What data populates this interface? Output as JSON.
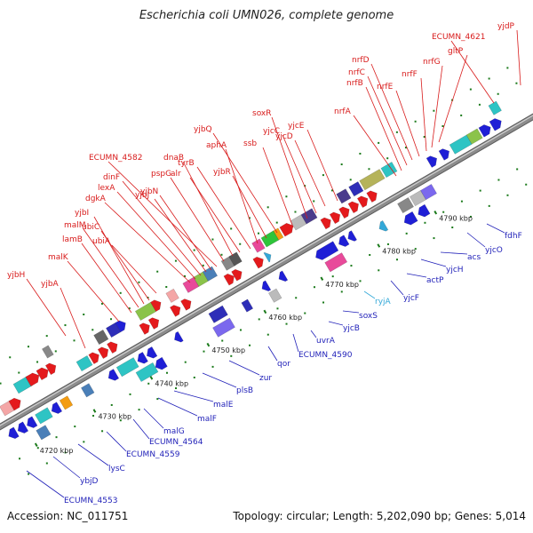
{
  "title": "Escherichia coli UMN026, complete genome",
  "accession": "Accession: NC_011751",
  "topology": "Topology: circular; Length: 5,202,090 bp; Genes: 5,014",
  "colors": {
    "forward": "#e41a1c",
    "reverse": "#1f1fd6",
    "rna": "#33a8d8",
    "backbone": "#8c8c8c",
    "tick": "#1b7a1b"
  },
  "ticks": [
    "4720 kbp",
    "4730 kbp",
    "4740 kbp",
    "4750 kbp",
    "4760 kbp",
    "4770 kbp",
    "4780 kbp",
    "4790 kbp"
  ],
  "top_labels": [
    "yjbH",
    "yjbA",
    "malK",
    "lamB",
    "malM",
    "yjbI",
    "ubiC",
    "ubiA",
    "dgkA",
    "lexA",
    "dinF",
    "yjbJ",
    "yjbN",
    "ECUMN_4582",
    "pspG",
    "dnaB",
    "alr",
    "tyrB",
    "aphA",
    "yjbR",
    "yjbQ",
    "ssb",
    "soxR",
    "yjcC",
    "yjcD",
    "yjcE",
    "nrfA",
    "nrfB",
    "nrfC",
    "nrfD",
    "nrfE",
    "nrfF",
    "nrfG",
    "gltP",
    "ECUMN_4621",
    "yjdP"
  ],
  "bottom_labels": [
    "ECUMN_4553",
    "ybjD",
    "lysC",
    "ECUMN_4559",
    "ECUMN_4564",
    "malG",
    "malF",
    "malE",
    "plsB",
    "zur",
    "qor",
    "ECUMN_4590",
    "uvrA",
    "yjcB",
    "soxS",
    "ryjA",
    "yjcF",
    "actP",
    "yjcH",
    "acs",
    "yjcO",
    "fdhF"
  ]
}
